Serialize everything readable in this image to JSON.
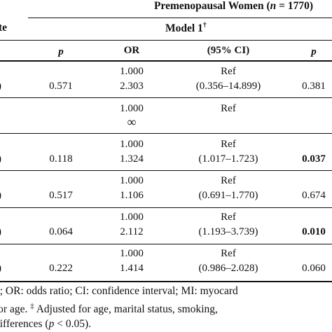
{
  "header": {
    "group_title_prefix": "Premenopausal Women (",
    "group_title_n": "n",
    "group_title_suffix": " = 1770)",
    "left_fragment": "te",
    "model_label": "Model 1",
    "model_mark": "†"
  },
  "columns": {
    "p_left": "p",
    "or": "OR",
    "ci": "(95% CI)",
    "p_right": "p"
  },
  "rows": [
    {
      "left": ")",
      "p1": "0.571",
      "or_ref": "1.000",
      "or_val": "2.303",
      "ci_ref": "Ref",
      "ci_val": "(0.356–14.899)",
      "p2": "0.381",
      "p2_bold": false
    },
    {
      "left": "",
      "p1": "",
      "or_ref": "1.000",
      "or_val": "∞",
      "ci_ref": "Ref",
      "ci_val": "",
      "p2": "",
      "p2_bold": false
    },
    {
      "left": ")",
      "p1": "0.118",
      "or_ref": "1.000",
      "or_val": "1.324",
      "ci_ref": "Ref",
      "ci_val": "(1.017–1.723)",
      "p2": "0.037",
      "p2_bold": true
    },
    {
      "left": ")",
      "p1": "0.517",
      "or_ref": "1.000",
      "or_val": "1.106",
      "ci_ref": "Ref",
      "ci_val": "(0.691–1.770)",
      "p2": "0.674",
      "p2_bold": false
    },
    {
      "left": ")",
      "p1": "0.064",
      "or_ref": "1.000",
      "or_val": "2.112",
      "ci_ref": "Ref",
      "ci_val": "(1.193–3.739)",
      "p2": "0.010",
      "p2_bold": true
    },
    {
      "left": ")",
      "p1": "0.222",
      "or_ref": "1.000",
      "or_val": "1.414",
      "ci_ref": "Ref",
      "ci_val": "(0.986–2.028)",
      "p2": "0.060",
      "p2_bold": false
    }
  ],
  "footnotes": {
    "line1": "o; OR: odds ratio; CI: confidence interval; MI: myocard",
    "line2_a": "for age. ",
    "line2_mark": "‡",
    "line2_b": " Adjusted for age, marital status, smoking, ",
    "line3_a": "differences (",
    "line3_p": "p",
    "line3_b": " < 0.05)."
  }
}
